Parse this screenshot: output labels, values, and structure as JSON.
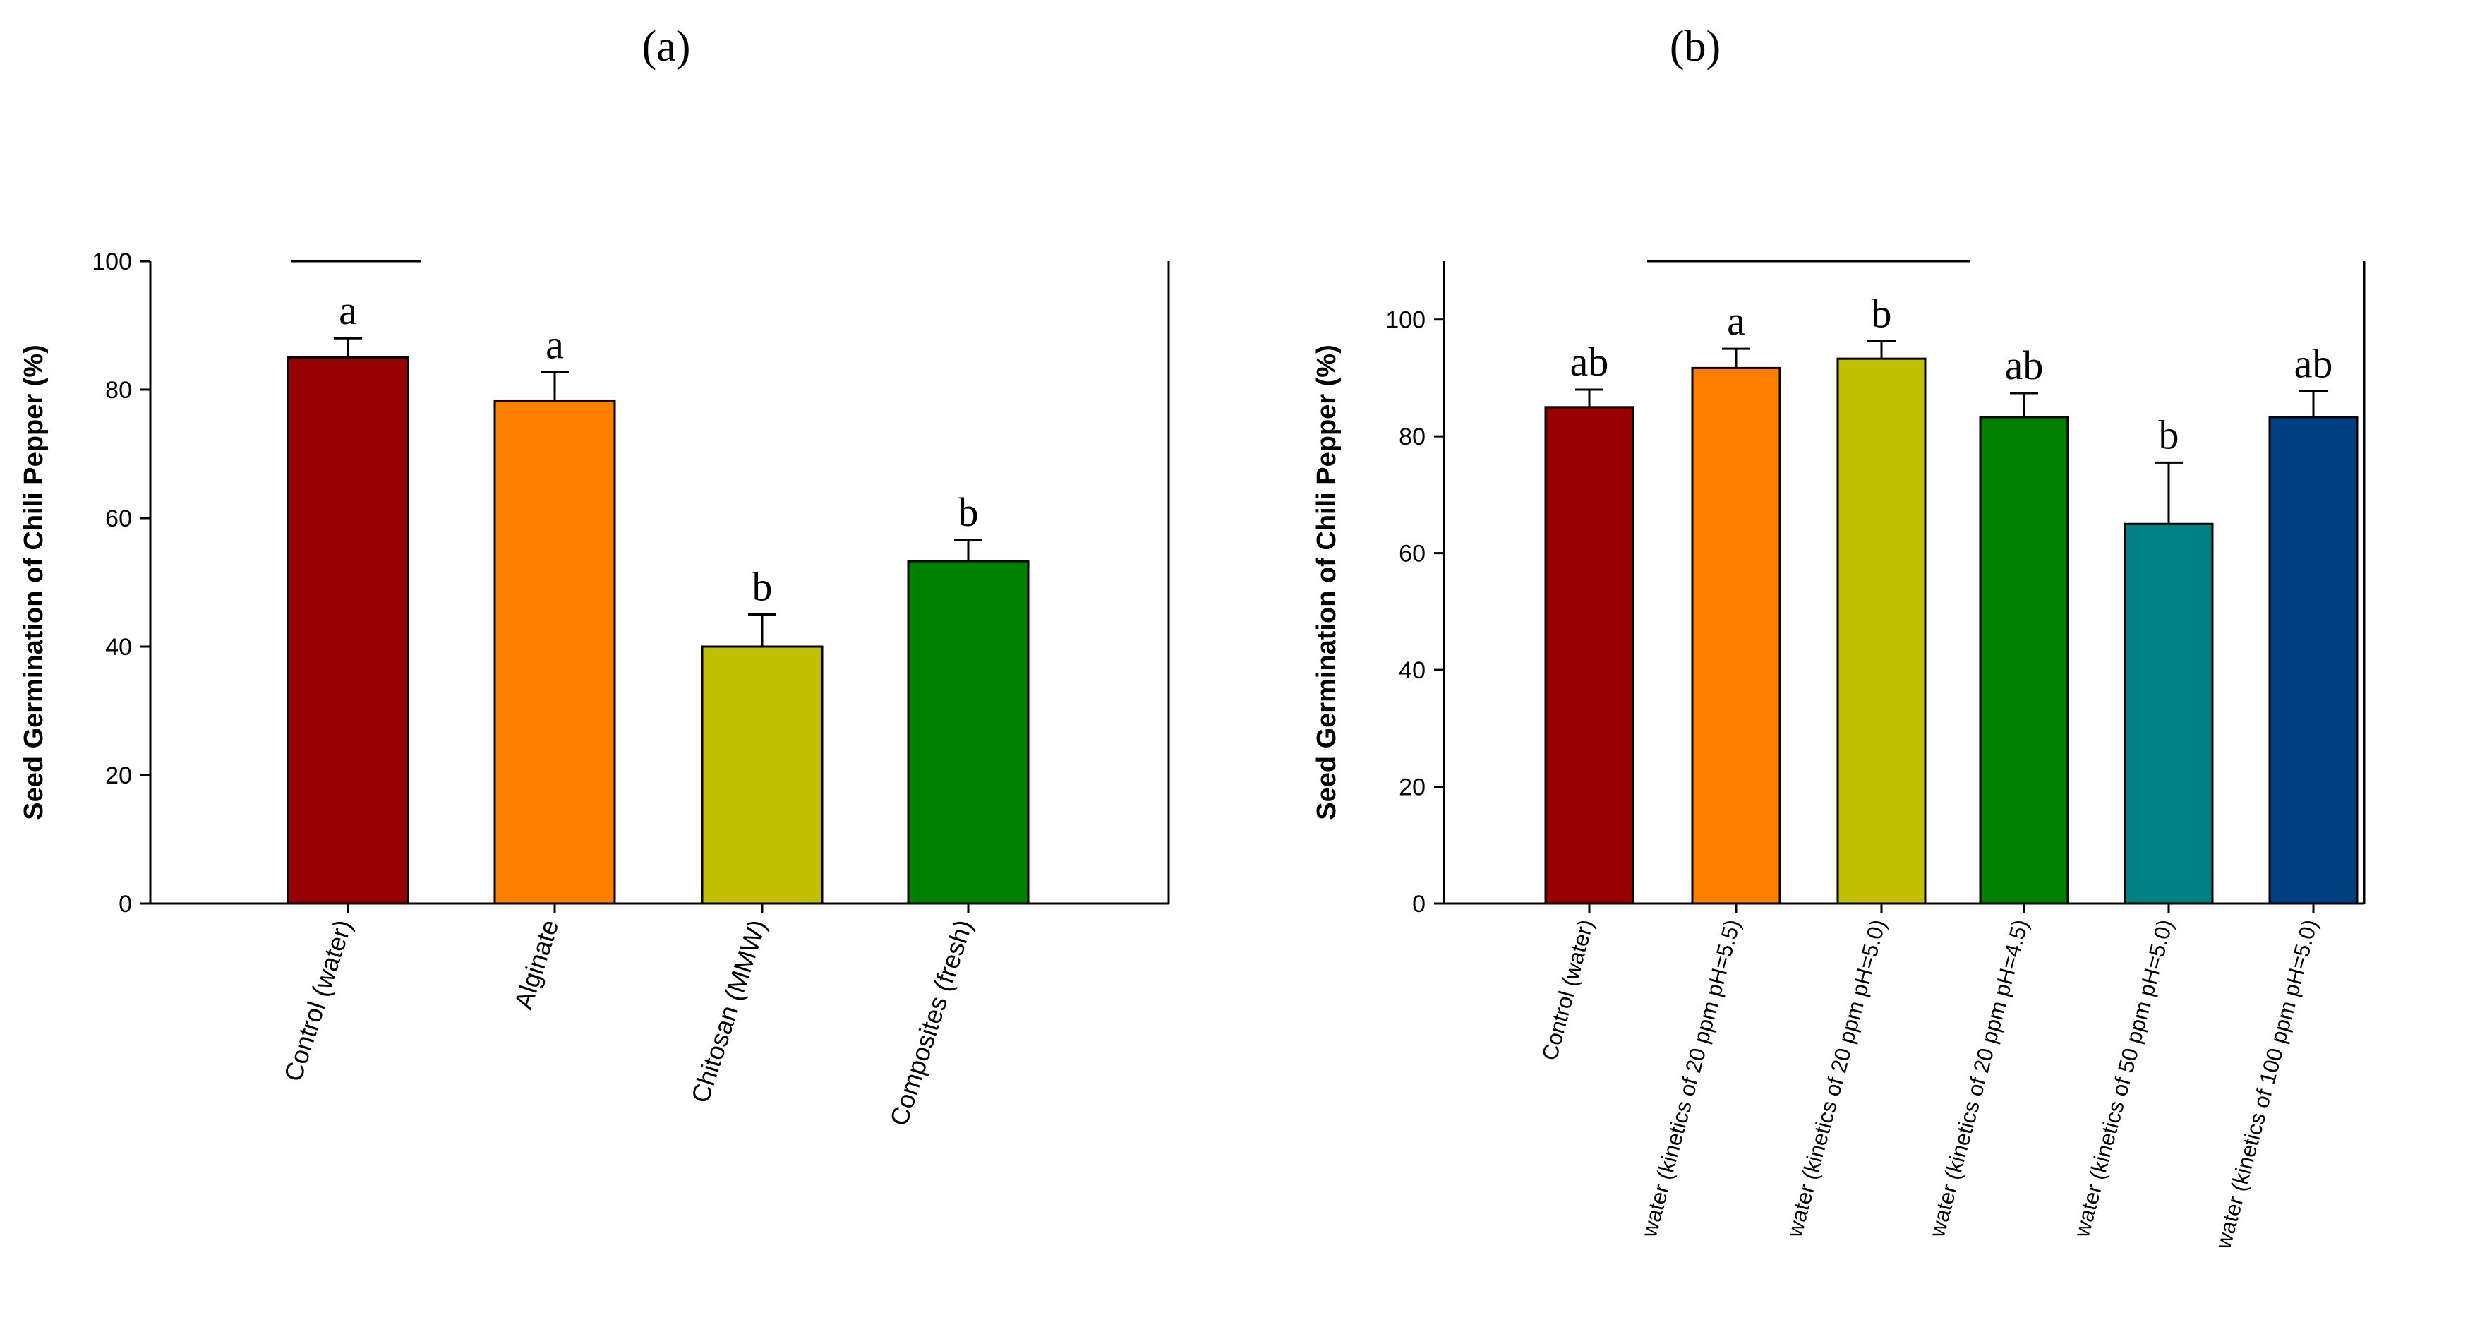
{
  "chart_data": [
    {
      "panel_label": "(a)",
      "type": "bar",
      "ylabel": "Seed Germination of Chili Pepper (%)",
      "xlabel": "",
      "ylim": [
        0,
        100
      ],
      "yticks": [
        0,
        20,
        40,
        60,
        80,
        100
      ],
      "grid": false,
      "categories": [
        "Control (water)",
        "Alginate",
        "Chitosan (MMW)",
        "Composites (fresh)"
      ],
      "values": [
        85,
        78.3,
        40,
        53.3
      ],
      "errors": [
        3,
        4.4,
        5,
        3.3
      ],
      "significance": [
        "a",
        "a",
        "b",
        "b"
      ],
      "colors": [
        "#960000",
        "#ff8000",
        "#c0c000",
        "#008000"
      ]
    },
    {
      "panel_label": "(b)",
      "type": "bar",
      "ylabel": "Seed Germination of Chili Pepper (%)",
      "xlabel": "",
      "ylim": [
        0,
        110
      ],
      "yticks": [
        0,
        20,
        40,
        60,
        80,
        100
      ],
      "grid": false,
      "categories": [
        "Control (water)",
        "water (kinetics of 20 ppm pH=5.5)",
        "water (kinetics of 20 ppm pH=5.0)",
        "water (kinetics of 20 ppm pH=4.5)",
        "water (kinetics of 50 ppm pH=5.0)",
        "water (kinetics of 100 ppm pH=5.0)"
      ],
      "values": [
        85,
        91.7,
        93.3,
        83.3,
        65,
        83.3
      ],
      "errors": [
        3,
        3.3,
        3,
        4.1,
        10.5,
        4.4
      ],
      "significance": [
        "ab",
        "a",
        "b",
        "ab",
        "b",
        "ab"
      ],
      "colors": [
        "#960000",
        "#ff8000",
        "#c0c000",
        "#008000",
        "#008080",
        "#004080"
      ]
    }
  ]
}
